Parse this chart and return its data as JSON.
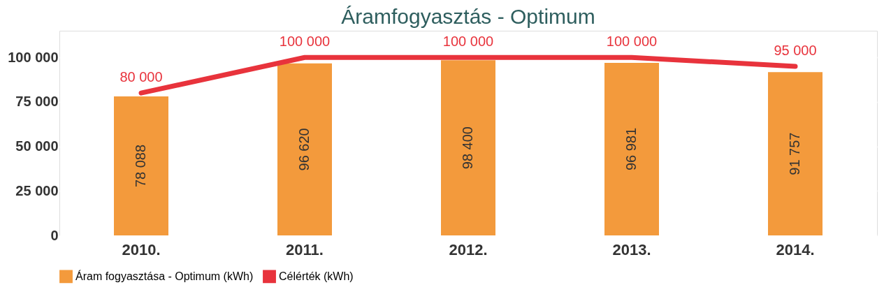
{
  "chart_data": {
    "type": "bar",
    "title": "Áramfogyasztás - Optimum",
    "categories": [
      "2010.",
      "2011.",
      "2012.",
      "2013.",
      "2014."
    ],
    "series": [
      {
        "name": "Áram fogyasztása - Optimum (kWh)",
        "color": "#f39a3c",
        "values": [
          78088,
          96620,
          98400,
          96981,
          91757
        ],
        "value_labels": [
          "78 088",
          "96 620",
          "98 400",
          "96 981",
          "91 757"
        ]
      },
      {
        "name": "Célérték (kWh)",
        "type": "line",
        "color": "#e8333c",
        "values": [
          80000,
          100000,
          100000,
          100000,
          95000
        ],
        "value_labels": [
          "80 000",
          "100 000",
          "100 000",
          "100 000",
          "95 000"
        ]
      }
    ],
    "ylim": [
      0,
      115000
    ],
    "yticks": [
      {
        "value": 0,
        "label": "0"
      },
      {
        "value": 25000,
        "label": "25 000"
      },
      {
        "value": 50000,
        "label": "50 000"
      },
      {
        "value": 75000,
        "label": "75 000"
      },
      {
        "value": 100000,
        "label": "100 000"
      }
    ],
    "grid": "y",
    "legend": "bottom",
    "marker": "none",
    "line_style": "solid"
  }
}
